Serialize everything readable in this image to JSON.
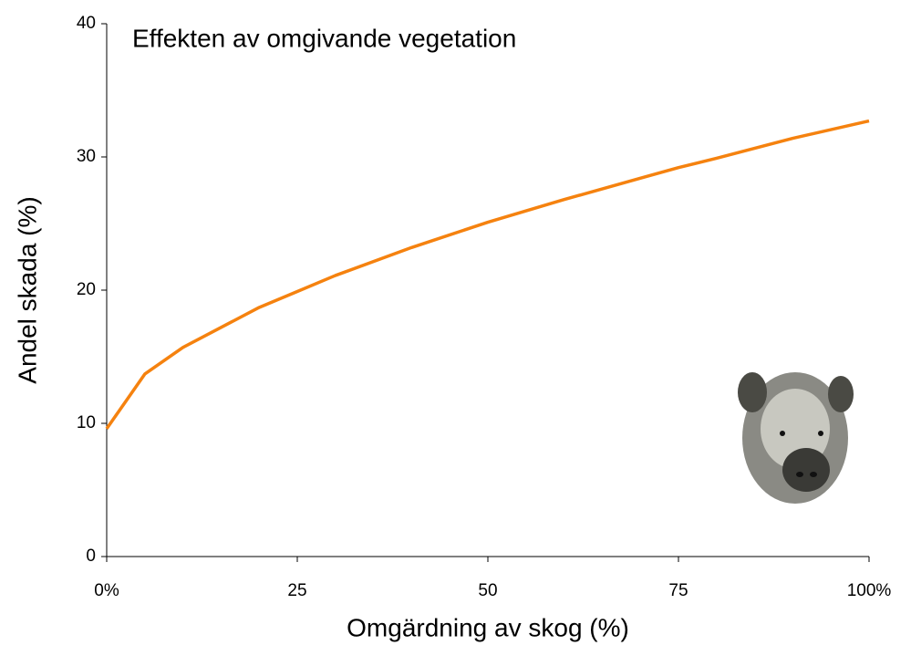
{
  "chart_data": {
    "type": "line",
    "title": "Effekten av omgivande vegetation",
    "x_label": "Omgärdning av skog (%)",
    "y_label": "Andel skada (%)",
    "x": [
      0,
      5,
      10,
      20,
      25,
      30,
      40,
      50,
      60,
      70,
      75,
      80,
      90,
      100
    ],
    "series": [
      {
        "color": "#f5820f",
        "values": [
          9.6,
          13.7,
          15.7,
          18.7,
          19.9,
          21.1,
          23.2,
          25.1,
          26.8,
          28.4,
          29.2,
          29.9,
          31.4,
          32.7
        ]
      }
    ],
    "xlim": [
      0,
      100
    ],
    "xticks": [
      {
        "value": 0,
        "label": "0%"
      },
      25,
      50,
      75,
      {
        "value": 100,
        "label": "100%"
      }
    ],
    "ylim": [
      0,
      40
    ],
    "yticks": [
      0,
      10,
      20,
      30,
      40
    ],
    "grid": false
  }
}
